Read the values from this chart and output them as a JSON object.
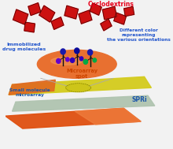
{
  "bg_color": "#f2f2f2",
  "labels": {
    "cyclodextrins": "Cyclodextrins",
    "immobilized": "Immobilized\ndrug molecules",
    "diff_color": "Different color\nrepresenting\nthe various orientations",
    "microarray_spot": "Microarray\nspot",
    "small_molecule": "Small molecule\nmicroarray",
    "spri": "SPRi"
  },
  "label_colors": {
    "cyclodextrins": "#e8001a",
    "immobilized": "#2255cc",
    "diff_color": "#2255cc",
    "microarray_spot": "#cc4400",
    "small_molecule": "#1a55aa",
    "spri": "#1a55aa"
  },
  "red_color": "#cc1111",
  "orange_spot": "#e87030",
  "plate_yellow": "#d4cc20",
  "plate_orange_red": "#e05010",
  "plate_gray_green": "#b8c8b0",
  "squares": [
    [
      22,
      168,
      18,
      14,
      -20
    ],
    [
      42,
      178,
      15,
      12,
      18
    ],
    [
      35,
      155,
      14,
      11,
      -8
    ],
    [
      60,
      172,
      18,
      14,
      -30
    ],
    [
      75,
      160,
      15,
      11,
      22
    ],
    [
      95,
      174,
      17,
      13,
      -15
    ],
    [
      115,
      168,
      16,
      13,
      18
    ],
    [
      130,
      178,
      14,
      11,
      -22
    ],
    [
      150,
      173,
      18,
      13,
      12
    ],
    [
      145,
      158,
      13,
      10,
      28
    ],
    [
      165,
      166,
      15,
      11,
      -18
    ],
    [
      178,
      175,
      13,
      10,
      10
    ]
  ]
}
